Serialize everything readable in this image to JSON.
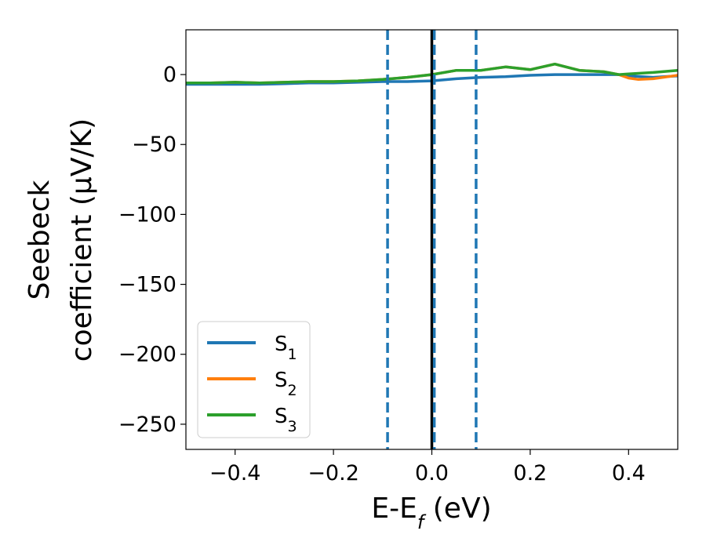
{
  "chart_data": {
    "type": "line",
    "xlabel": {
      "base": "E-E",
      "sub": "f",
      "unit": " (eV)"
    },
    "ylabel": {
      "line1": "Seebeck",
      "line2": "coefficient  (μV/K)"
    },
    "xlim": [
      -0.5,
      0.5
    ],
    "ylim": [
      -268,
      32
    ],
    "xticks": [
      -0.4,
      -0.2,
      0.0,
      0.2,
      0.4
    ],
    "xtick_labels": [
      "−0.4",
      "−0.2",
      "0.0",
      "0.2",
      "0.4"
    ],
    "yticks": [
      0,
      -50,
      -100,
      -150,
      -200,
      -250
    ],
    "ytick_labels": [
      "0",
      "−50",
      "−100",
      "−150",
      "−200",
      "−250"
    ],
    "grid": false,
    "legend_position": "lower-left",
    "vlines": [
      {
        "x": -0.09,
        "style": "dashed",
        "color": "#1f77b4"
      },
      {
        "x": 0.0,
        "style": "solid",
        "color": "#000000"
      },
      {
        "x": 0.005,
        "style": "dashed",
        "color": "#1f77b4"
      },
      {
        "x": 0.09,
        "style": "dashed",
        "color": "#1f77b4"
      }
    ],
    "series": [
      {
        "name": "S",
        "sub": "1",
        "color": "#1f77b4",
        "x": [
          -0.5,
          -0.45,
          -0.4,
          -0.35,
          -0.3,
          -0.25,
          -0.2,
          -0.15,
          -0.1,
          -0.05,
          0.0,
          0.05,
          0.1,
          0.15,
          0.2,
          0.25,
          0.3,
          0.35,
          0.38,
          0.4,
          0.45,
          0.5
        ],
        "y": [
          -7,
          -7,
          -7,
          -7,
          -6.5,
          -6,
          -6,
          -5.5,
          -5,
          -5,
          -4.5,
          -3,
          -2,
          -1.5,
          -0.5,
          0,
          0,
          0,
          0,
          -1,
          -2,
          -1
        ]
      },
      {
        "name": "S",
        "sub": "2",
        "color": "#ff7f0e",
        "x": [
          -0.5,
          -0.45,
          -0.4,
          -0.35,
          -0.3,
          -0.25,
          -0.2,
          -0.15,
          -0.1,
          -0.05,
          0.0,
          0.05,
          0.1,
          0.15,
          0.2,
          0.25,
          0.3,
          0.35,
          0.38,
          0.4,
          0.42,
          0.45,
          0.5
        ],
        "y": [
          -6,
          -6,
          -5.5,
          -6,
          -5.5,
          -5,
          -5,
          -4.5,
          -3.5,
          -2,
          0,
          3,
          3,
          5.5,
          3.5,
          7.5,
          3,
          2,
          0,
          -2.5,
          -3.5,
          -3,
          -0.5
        ]
      },
      {
        "name": "S",
        "sub": "3",
        "color": "#2ca02c",
        "x": [
          -0.5,
          -0.45,
          -0.4,
          -0.35,
          -0.3,
          -0.25,
          -0.2,
          -0.15,
          -0.1,
          -0.05,
          0.0,
          0.05,
          0.1,
          0.15,
          0.2,
          0.25,
          0.3,
          0.35,
          0.38,
          0.4,
          0.45,
          0.5
        ],
        "y": [
          -6,
          -6,
          -5.5,
          -6,
          -5.5,
          -5,
          -5,
          -4.5,
          -3.5,
          -2,
          0,
          3,
          3,
          5.5,
          3.5,
          7.5,
          3,
          2,
          0,
          0.5,
          1.5,
          3
        ]
      }
    ]
  }
}
